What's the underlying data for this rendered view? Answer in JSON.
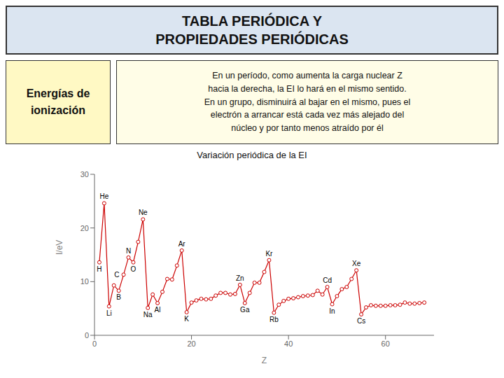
{
  "chart_data": {
    "type": "line",
    "title": "TABLA PERIÓDICA Y\nPROPIEDADES PERIÓDICAS",
    "subtitle": "Variación periódica de la EI",
    "xlabel": "Z",
    "ylabel": "I/eV",
    "x": [
      1,
      2,
      3,
      4,
      5,
      6,
      7,
      8,
      9,
      10,
      11,
      12,
      13,
      14,
      15,
      16,
      17,
      18,
      19,
      20,
      21,
      22,
      23,
      24,
      25,
      26,
      27,
      28,
      29,
      30,
      31,
      32,
      33,
      34,
      35,
      36,
      37,
      38,
      39,
      40,
      41,
      42,
      43,
      44,
      45,
      46,
      47,
      48,
      49,
      50,
      51,
      52,
      53,
      54,
      55,
      56,
      57,
      58,
      59,
      60,
      61,
      62,
      63,
      64,
      65,
      66,
      67,
      68
    ],
    "values": [
      13.6,
      24.6,
      5.4,
      9.3,
      8.3,
      11.3,
      14.5,
      13.6,
      17.4,
      21.6,
      5.1,
      7.6,
      6.0,
      8.1,
      10.5,
      10.4,
      13.0,
      15.8,
      4.3,
      6.1,
      6.5,
      6.8,
      6.7,
      6.8,
      7.4,
      7.9,
      7.9,
      7.6,
      7.7,
      9.4,
      6.0,
      7.9,
      9.8,
      9.8,
      11.8,
      14.0,
      4.2,
      5.7,
      6.4,
      6.8,
      6.9,
      7.1,
      7.3,
      7.4,
      7.5,
      8.3,
      7.6,
      9.0,
      5.8,
      7.3,
      8.6,
      9.0,
      10.5,
      12.1,
      3.9,
      5.2,
      5.6,
      5.5,
      5.5,
      5.5,
      5.6,
      5.6,
      5.7,
      6.1,
      5.9,
      5.9,
      6.0,
      6.1
    ],
    "color": "#cc0000",
    "marker": "circle",
    "line_style": "solid",
    "xlim": [
      0,
      70
    ],
    "xticks": [
      0,
      20,
      40,
      60
    ],
    "ylim": [
      0,
      30
    ],
    "yticks": [
      0,
      10,
      20,
      30
    ],
    "grid": false,
    "annotations": [
      {
        "text": "Energías de\nionización"
      },
      {
        "text": "En un período, como aumenta la carga nuclear Z\nhacia la derecha, la EI lo hará en el mismo sentido.\nEn un grupo, disminuirá al bajar en el mismo, pues el\nelectrón a arrancar está cada vez más alejado del\nnúcleo y por tanto menos atraído por él"
      },
      {
        "text": "H",
        "x": 1,
        "y": 13.6
      },
      {
        "text": "He",
        "x": 2,
        "y": 24.6
      },
      {
        "text": "Li",
        "x": 3,
        "y": 5.4
      },
      {
        "text": "B",
        "x": 5,
        "y": 8.3
      },
      {
        "text": "C",
        "x": 6,
        "y": 11.3
      },
      {
        "text": "N",
        "x": 7,
        "y": 14.5
      },
      {
        "text": "O",
        "x": 8,
        "y": 13.6
      },
      {
        "text": "Ne",
        "x": 10,
        "y": 21.6
      },
      {
        "text": "Na",
        "x": 11,
        "y": 5.1
      },
      {
        "text": "Al",
        "x": 13,
        "y": 6.0
      },
      {
        "text": "Ar",
        "x": 18,
        "y": 15.8
      },
      {
        "text": "K",
        "x": 19,
        "y": 4.3
      },
      {
        "text": "Zn",
        "x": 30,
        "y": 9.4
      },
      {
        "text": "Ga",
        "x": 31,
        "y": 6.0
      },
      {
        "text": "Kr",
        "x": 36,
        "y": 14.0
      },
      {
        "text": "Rb",
        "x": 37,
        "y": 4.2
      },
      {
        "text": "Cd",
        "x": 48,
        "y": 9.0
      },
      {
        "text": "In",
        "x": 49,
        "y": 5.8
      },
      {
        "text": "Xe",
        "x": 54,
        "y": 12.1
      },
      {
        "text": "Cs",
        "x": 55,
        "y": 3.9
      }
    ]
  }
}
